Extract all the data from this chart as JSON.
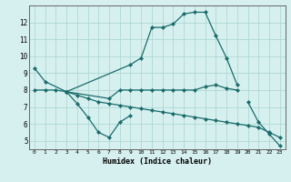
{
  "title": "",
  "xlabel": "Humidex (Indice chaleur)",
  "ylabel": "",
  "background_color": "#d6f0ef",
  "line_color": "#1a6b6b",
  "grid_color": "#aed8d4",
  "xlim": [
    -0.5,
    23.5
  ],
  "ylim": [
    4.5,
    13.0
  ],
  "xticks": [
    0,
    1,
    2,
    3,
    4,
    5,
    6,
    7,
    8,
    9,
    10,
    11,
    12,
    13,
    14,
    15,
    16,
    17,
    18,
    19,
    20,
    21,
    22,
    23
  ],
  "yticks": [
    5,
    6,
    7,
    8,
    9,
    10,
    11,
    12
  ],
  "series": [
    {
      "x": [
        0,
        1,
        3,
        9,
        10,
        11,
        12,
        13,
        14,
        15,
        16,
        17,
        18,
        19
      ],
      "y": [
        9.3,
        8.5,
        7.9,
        9.5,
        9.9,
        11.7,
        11.7,
        11.9,
        12.5,
        12.6,
        12.6,
        11.2,
        9.9,
        8.3
      ]
    },
    {
      "x": [
        3,
        4,
        5,
        6,
        7,
        8,
        9
      ],
      "y": [
        7.9,
        7.2,
        6.4,
        5.5,
        5.2,
        6.1,
        6.5
      ]
    },
    {
      "x": [
        3,
        7,
        8,
        9,
        10,
        11,
        12,
        13,
        14,
        15,
        16,
        17,
        18,
        19
      ],
      "y": [
        7.9,
        7.5,
        8.0,
        8.0,
        8.0,
        8.0,
        8.0,
        8.0,
        8.0,
        8.0,
        8.2,
        8.3,
        8.1,
        8.0
      ]
    },
    {
      "x": [
        20,
        21,
        22,
        23
      ],
      "y": [
        7.3,
        6.1,
        5.4,
        4.7
      ]
    },
    {
      "x": [
        0,
        1,
        2,
        3,
        4,
        5,
        6,
        7,
        8,
        9,
        10,
        11,
        12,
        13,
        14,
        15,
        16,
        17,
        18,
        19,
        20,
        21,
        22,
        23
      ],
      "y": [
        8.0,
        8.0,
        8.0,
        7.9,
        7.7,
        7.5,
        7.3,
        7.2,
        7.1,
        7.0,
        6.9,
        6.8,
        6.7,
        6.6,
        6.5,
        6.4,
        6.3,
        6.2,
        6.1,
        6.0,
        5.9,
        5.8,
        5.5,
        5.2
      ]
    }
  ]
}
